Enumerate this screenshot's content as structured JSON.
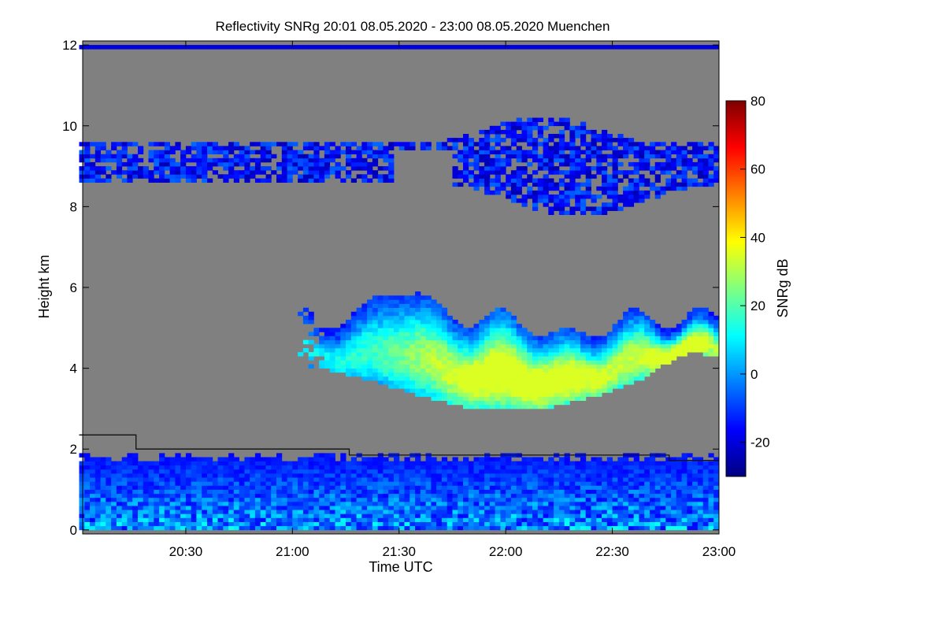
{
  "chart_data": {
    "type": "heatmap",
    "title": "Reflectivity SNRg   20:01 08.05.2020 - 23:00 08.05.2020 Muenchen",
    "xlabel": "Time UTC",
    "ylabel": "Height km",
    "x_ticks": [
      "20:30",
      "21:00",
      "21:30",
      "22:00",
      "22:30",
      "23:00"
    ],
    "x_tick_minutes": [
      30,
      60,
      90,
      120,
      150,
      180
    ],
    "xlim_minutes": [
      1,
      180
    ],
    "y_ticks": [
      "0",
      "2",
      "4",
      "6",
      "8",
      "10",
      "12"
    ],
    "y_tick_values": [
      0,
      2,
      4,
      6,
      8,
      10,
      12
    ],
    "ylim": [
      -0.1,
      12.1
    ],
    "colorbar": {
      "label": "SNRg dB",
      "ticks": [
        "-20",
        "0",
        "20",
        "40",
        "60",
        "80"
      ],
      "tick_values": [
        -20,
        0,
        20,
        40,
        60,
        80
      ],
      "range": [
        -30,
        80
      ],
      "colormap": [
        "#00007f",
        "#0000ff",
        "#0080ff",
        "#00ffff",
        "#80ff80",
        "#ffff00",
        "#ff8000",
        "#ff0000",
        "#7f0000"
      ]
    },
    "background_color": "#808080",
    "features": [
      {
        "name": "cirrus layer",
        "time_minutes": [
          0,
          180
        ],
        "height_km": [
          7.5,
          10.5
        ],
        "snr_db": [
          -25,
          -5
        ]
      },
      {
        "name": "mid-level cloud",
        "time_minutes": [
          60,
          180
        ],
        "height_km": [
          2.8,
          6.2
        ],
        "snr_db": [
          -20,
          35
        ]
      },
      {
        "name": "boundary-layer clutter",
        "time_minutes": [
          0,
          180
        ],
        "height_km": [
          0,
          2
        ],
        "snr_db": [
          -25,
          5
        ]
      },
      {
        "name": "top line",
        "time_minutes": [
          0,
          180
        ],
        "height_km": [
          11.9,
          11.9
        ],
        "snr_db": [
          -20,
          -20
        ]
      }
    ],
    "boundary_layer_height": {
      "time_minutes": [
        0,
        16,
        16,
        76,
        76,
        166,
        166,
        180
      ],
      "height_km": [
        2.35,
        2.35,
        2.0,
        2.0,
        1.85,
        1.85,
        1.72,
        1.72
      ]
    }
  }
}
